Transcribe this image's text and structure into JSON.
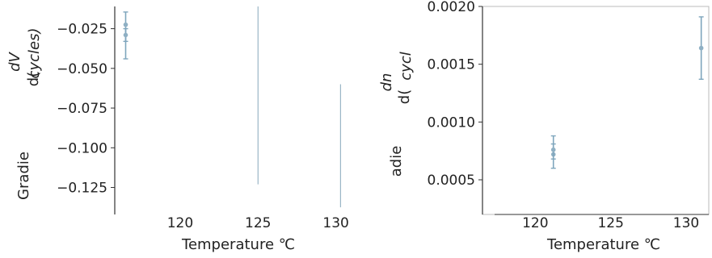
{
  "colors": {
    "marker": "#8fb0c4",
    "error_bar": "#7fa6bd",
    "vertical_line": "#9ab6c6",
    "axis": "#333333",
    "frame": "#bbbbbb"
  },
  "chart_data": [
    {
      "type": "scatter",
      "title": "",
      "xlabel": "Temperature ℃",
      "ylabel_parts": [
        "Gradie",
        "d(",
        "dV",
        "cycles)"
      ],
      "xlim": [
        115.8,
        132.2
      ],
      "ylim": [
        -0.142,
        -0.011
      ],
      "x_ticks": [
        120,
        125,
        130
      ],
      "x_tick_labels": [
        "120",
        "125",
        "130"
      ],
      "y_ticks": [
        -0.025,
        -0.05,
        -0.075,
        -0.1,
        -0.125
      ],
      "y_tick_labels": [
        "−0.025",
        "−0.050",
        "−0.075",
        "−0.100",
        "−0.125"
      ],
      "grid": false,
      "frame": "left-only",
      "points": [
        {
          "x": 116.5,
          "y": -0.0225,
          "yerr_low": -0.044,
          "yerr_high": -0.0145
        },
        {
          "x": 116.5,
          "y": -0.029,
          "yerr_low": -0.033,
          "yerr_high": -0.025
        }
      ],
      "vertical_lines": [
        {
          "x": 125,
          "y_from": -0.123,
          "y_to": -0.011
        },
        {
          "x": 130.3,
          "y_from": -0.1375,
          "y_to": -0.06
        }
      ]
    },
    {
      "type": "scatter",
      "title": "",
      "xlabel": "Temperature ℃",
      "ylabel_parts": [
        "adie",
        "d(",
        "dn",
        "cycl"
      ],
      "xlim": [
        116.5,
        131.5
      ],
      "ylim": [
        0.0002,
        0.002
      ],
      "x_ticks": [
        120,
        125,
        130
      ],
      "x_tick_labels": [
        "120",
        "125",
        "130"
      ],
      "y_ticks": [
        0.002,
        0.0015,
        0.001,
        0.0005
      ],
      "y_tick_labels": [
        "0.0020",
        "0.0015",
        "0.0010",
        "0.0005"
      ],
      "grid": false,
      "frame": "box",
      "points": [
        {
          "x": 121.2,
          "y": 0.00072,
          "yerr_low": 0.0006,
          "yerr_high": 0.00088
        },
        {
          "x": 121.2,
          "y": 0.00076,
          "yerr_low": 0.00068,
          "yerr_high": 0.00081
        },
        {
          "x": 131.0,
          "y": 0.00164,
          "yerr_low": 0.00137,
          "yerr_high": 0.00191
        }
      ]
    }
  ]
}
